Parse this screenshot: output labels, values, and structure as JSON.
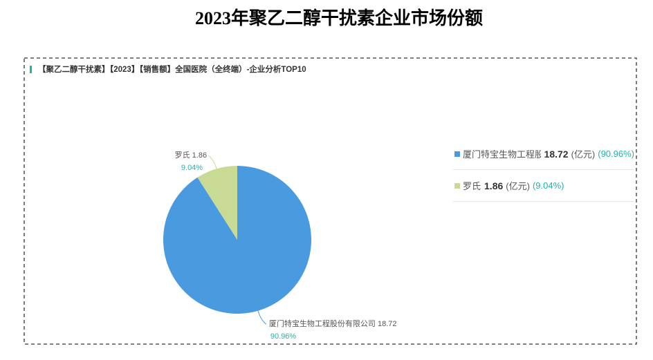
{
  "chart_data": {
    "type": "pie",
    "title": "2023年聚乙二醇干扰素企业市场份额",
    "subtitle": "【聚乙二醇干扰素】【2023】【销售额】全国医院（全终端）-企业分析TOP10",
    "categories": [
      "厦门特宝生物工程股份有限公司",
      "罗氏"
    ],
    "values": [
      18.72,
      1.86
    ],
    "colors": [
      "#4a9ae0",
      "#c9da94"
    ],
    "shares": [
      90.96,
      9.04
    ],
    "share_labels": [
      "90.96%",
      "9.04%"
    ],
    "legend_share_labels": [
      "(90.96%)",
      "(9.04%)"
    ],
    "unit_label": "(亿元)"
  }
}
